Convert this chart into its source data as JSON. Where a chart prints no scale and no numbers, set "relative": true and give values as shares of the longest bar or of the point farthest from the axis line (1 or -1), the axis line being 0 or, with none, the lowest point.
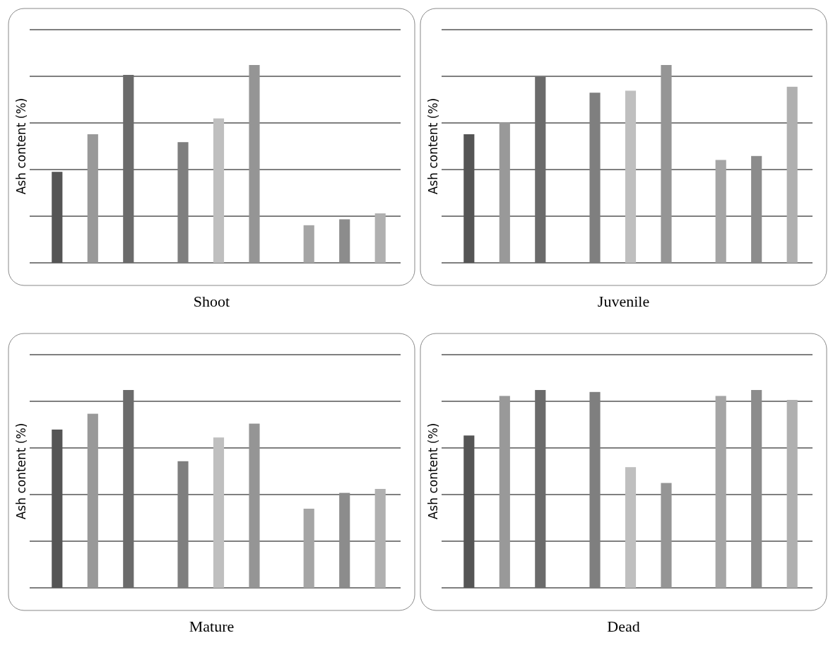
{
  "chart_data": [
    {
      "type": "bar",
      "title": "Shoot",
      "ylabel": "Ash content (%)",
      "relative": true,
      "grid": "y",
      "categories": [
        null,
        null,
        null
      ],
      "series": [
        {
          "values": [
            0.46,
            0.61,
            0.19
          ],
          "colors": [
            "#555555",
            "#7f7f7f",
            "#a5a5a5"
          ]
        },
        {
          "values": [
            0.65,
            0.73,
            0.22
          ],
          "colors": [
            "#999999",
            "#bfbfbf",
            "#8c8c8c"
          ]
        },
        {
          "values": [
            0.95,
            1,
            0.25
          ],
          "colors": [
            "#6b6b6b",
            "#959595",
            "#b0b0b0"
          ]
        }
      ]
    },
    {
      "type": "bar",
      "title": "Juvenile",
      "ylabel": "Ash content (%)",
      "relative": true,
      "grid": "y",
      "categories": [
        null,
        null,
        null
      ],
      "series": [
        {
          "values": [
            0.65,
            0.86,
            0.52
          ],
          "colors": [
            "#555555",
            "#7f7f7f",
            "#a5a5a5"
          ]
        },
        {
          "values": [
            0.71,
            0.87,
            0.54
          ],
          "colors": [
            "#999999",
            "#bfbfbf",
            "#8c8c8c"
          ]
        },
        {
          "values": [
            0.94,
            1,
            0.89
          ],
          "colors": [
            "#6b6b6b",
            "#959595",
            "#b0b0b0"
          ]
        }
      ]
    },
    {
      "type": "bar",
      "title": "Mature",
      "ylabel": "Ash content (%)",
      "relative": true,
      "grid": "y",
      "categories": [
        null,
        null,
        null
      ],
      "series": [
        {
          "values": [
            0.8,
            0.64,
            0.4
          ],
          "colors": [
            "#555555",
            "#7f7f7f",
            "#a5a5a5"
          ]
        },
        {
          "values": [
            0.88,
            0.76,
            0.48
          ],
          "colors": [
            "#999999",
            "#bfbfbf",
            "#8c8c8c"
          ]
        },
        {
          "values": [
            1,
            0.83,
            0.5
          ],
          "colors": [
            "#6b6b6b",
            "#959595",
            "#b0b0b0"
          ]
        }
      ]
    },
    {
      "type": "bar",
      "title": "Dead",
      "ylabel": "Ash content (%)",
      "relative": true,
      "grid": "y",
      "categories": [
        null,
        null,
        null
      ],
      "series": [
        {
          "values": [
            0.77,
            0.99,
            0.97
          ],
          "colors": [
            "#555555",
            "#7f7f7f",
            "#a5a5a5"
          ]
        },
        {
          "values": [
            0.97,
            0.61,
            1
          ],
          "colors": [
            "#999999",
            "#bfbfbf",
            "#8c8c8c"
          ]
        },
        {
          "values": [
            1,
            0.53,
            0.95
          ],
          "colors": [
            "#6b6b6b",
            "#959595",
            "#b0b0b0"
          ]
        }
      ]
    }
  ]
}
